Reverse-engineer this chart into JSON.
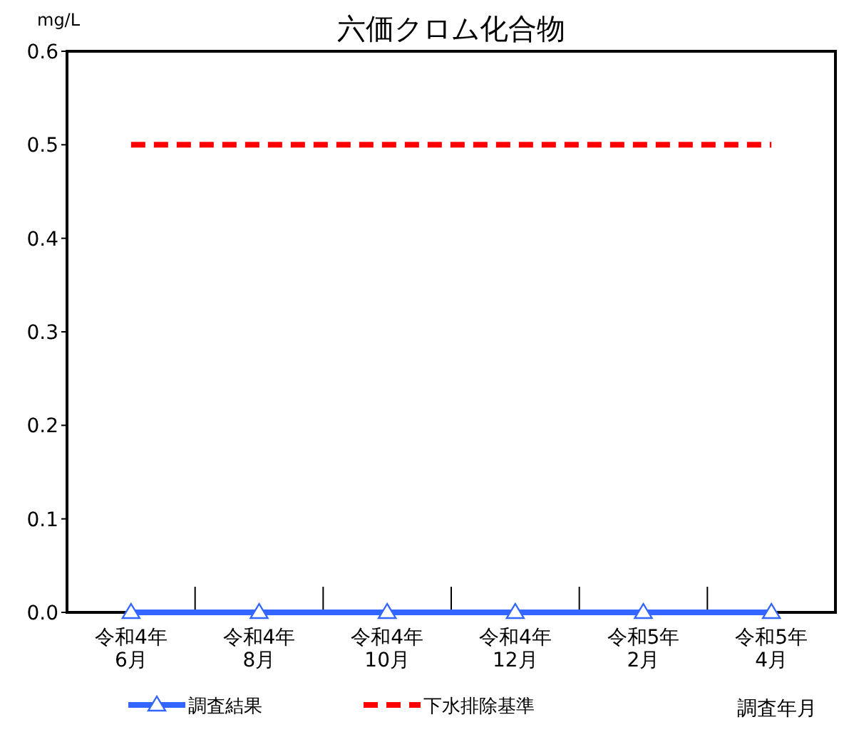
{
  "chart_data": {
    "type": "line",
    "title": "六価クロム化合物",
    "ylabel": "mg/L",
    "xlabel": "調査年月",
    "categories": [
      "令和4年\n6月",
      "令和4年\n8月",
      "令和4年\n10月",
      "令和4年\n12月",
      "令和5年\n2月",
      "令和5年\n4月"
    ],
    "series": [
      {
        "name": "調査結果",
        "color": "#3366ff",
        "values": [
          0,
          0,
          0,
          0,
          0,
          0
        ],
        "marker": "triangle",
        "line_style": "solid"
      },
      {
        "name": "下水排除基準",
        "color": "#ff0000",
        "values": [
          0.5,
          0.5,
          0.5,
          0.5,
          0.5,
          0.5
        ],
        "marker": "none",
        "line_style": "dashed"
      }
    ],
    "ylim": [
      0,
      0.6
    ],
    "yticks": [
      {
        "value": 0,
        "label": "0.0"
      },
      {
        "value": 0.1,
        "label": "0.1"
      },
      {
        "value": 0.2,
        "label": "0.2"
      },
      {
        "value": 0.3,
        "label": "0.3"
      },
      {
        "value": 0.4,
        "label": "0.4"
      },
      {
        "value": 0.5,
        "label": "0.5"
      },
      {
        "value": 0.6,
        "label": "0.6"
      }
    ],
    "grid": false,
    "legend": "bottom"
  }
}
